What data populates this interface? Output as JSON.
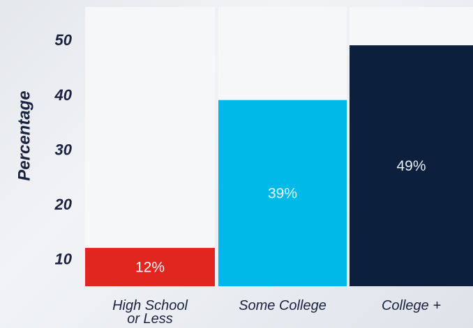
{
  "chart_data": {
    "type": "bar",
    "ylabel": "Percentage",
    "xlabel": "",
    "title": "",
    "categories": [
      "High School or Less",
      "Some College",
      "College +"
    ],
    "category_lines": [
      [
        "High School",
        "or Less"
      ],
      [
        "Some College"
      ],
      [
        "College +"
      ]
    ],
    "values": [
      12,
      39,
      49
    ],
    "value_labels": [
      "12%",
      "39%",
      "49%"
    ],
    "bar_colors": [
      "#e0261f",
      "#00b9e8",
      "#0c1f3d"
    ],
    "label_colors": [
      "#ffffff",
      "#e9f9ff",
      "#e8ecf3"
    ],
    "background_column_color": "#f6f7f9",
    "ylim": [
      5,
      56
    ],
    "yticks": [
      10,
      20,
      30,
      40,
      50
    ],
    "ytick_labels": [
      "10",
      "20",
      "30",
      "40",
      "50"
    ],
    "text_color": "#1a2240",
    "grid": false,
    "legend": "none"
  }
}
